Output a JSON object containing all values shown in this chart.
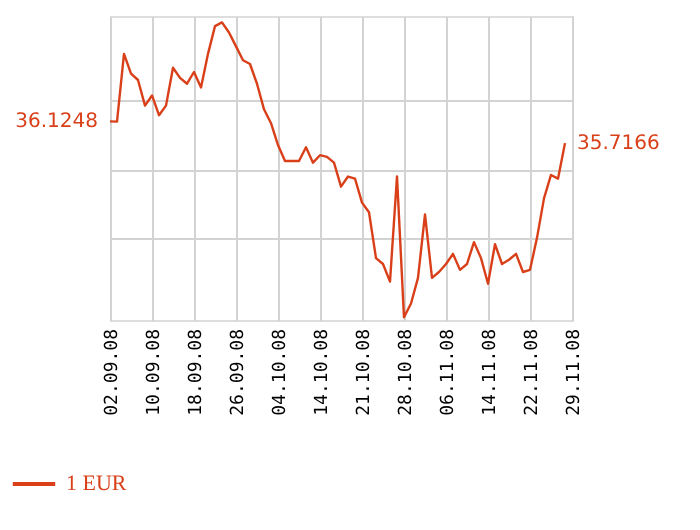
{
  "chart_data": {
    "type": "line",
    "categories": [
      "02.09.08",
      null,
      null,
      null,
      null,
      null,
      "10.09.08",
      null,
      null,
      null,
      null,
      null,
      "18.09.08",
      null,
      null,
      null,
      null,
      null,
      "26.09.08",
      null,
      null,
      null,
      null,
      null,
      "04.10.08",
      null,
      null,
      null,
      null,
      null,
      "14.10.08",
      null,
      null,
      null,
      null,
      null,
      "21.10.08",
      null,
      null,
      null,
      null,
      null,
      "28.10.08",
      null,
      null,
      null,
      null,
      null,
      "06.11.08",
      null,
      null,
      null,
      null,
      null,
      "14.11.08",
      null,
      null,
      null,
      null,
      null,
      "22.11.08",
      null,
      null,
      null,
      null,
      null,
      "29.11.08"
    ],
    "series": [
      {
        "name": "1 EUR",
        "color": "#d9401a",
        "values": [
          36.1248,
          36.12,
          37.39,
          37.02,
          36.9,
          36.42,
          36.61,
          36.24,
          36.42,
          37.13,
          36.94,
          36.83,
          37.05,
          36.76,
          37.39,
          37.91,
          37.98,
          37.79,
          37.53,
          37.27,
          37.2,
          36.83,
          36.35,
          36.09,
          35.68,
          35.38,
          35.38,
          35.38,
          35.64,
          35.35,
          35.49,
          35.46,
          35.35,
          34.9,
          35.09,
          35.05,
          34.6,
          34.42,
          33.56,
          33.45,
          33.12,
          35.09,
          32.45,
          32.71,
          33.19,
          34.38,
          33.19,
          33.3,
          33.45,
          33.64,
          33.34,
          33.45,
          33.86,
          33.56,
          33.08,
          33.82,
          33.45,
          33.53,
          33.64,
          33.3,
          33.34,
          33.94,
          34.68,
          35.12,
          35.05,
          35.7166,
          null
        ],
        "value_labels": [
          "36.1248",
          null,
          null,
          null,
          null,
          null,
          null,
          null,
          null,
          null,
          null,
          null,
          null,
          null,
          null,
          null,
          null,
          null,
          null,
          null,
          null,
          null,
          null,
          null,
          null,
          null,
          null,
          null,
          null,
          null,
          null,
          null,
          null,
          null,
          null,
          null,
          null,
          null,
          null,
          null,
          null,
          null,
          null,
          null,
          null,
          null,
          null,
          null,
          null,
          null,
          null,
          null,
          null,
          null,
          null,
          null,
          null,
          null,
          null,
          null,
          null,
          null,
          null,
          null,
          null,
          "35.7166",
          null
        ]
      }
    ],
    "ylim": [
      32.4,
      38.1
    ],
    "yticks": [
      {
        "value": 33.93,
        "label": null
      },
      {
        "value": 35.23,
        "label": null
      },
      {
        "value": 36.53,
        "label": null
      }
    ],
    "tick_labels": "x",
    "grid": true,
    "legend": "bottom left",
    "marker": "none",
    "line_style": "solid"
  }
}
